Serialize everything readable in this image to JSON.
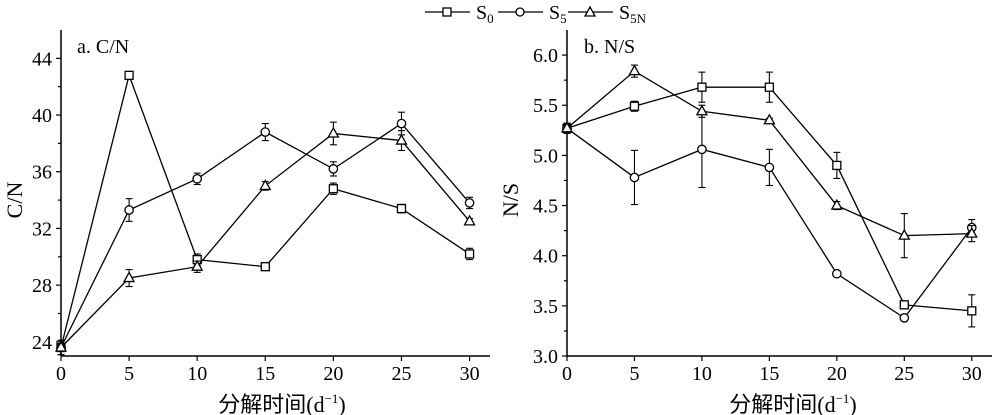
{
  "legend": [
    {
      "main": "S",
      "sub": "0"
    },
    {
      "main": "S",
      "sub": "5"
    },
    {
      "main": "S",
      "sub": "5N"
    }
  ],
  "chart_data": [
    {
      "type": "line",
      "title": "a. C/N",
      "xlabel": "分解时间(d",
      "xlabel_sup": "−1",
      "xlabel_end": ")",
      "ylabel": "C/N",
      "x": [
        0,
        5,
        10,
        15,
        20,
        25,
        30
      ],
      "xticks": [
        "0",
        "5",
        "10",
        "15",
        "20",
        "25",
        "30"
      ],
      "yticks": [
        "24",
        "28",
        "32",
        "36",
        "40",
        "44"
      ],
      "xlim": [
        0,
        31.5
      ],
      "ylim": [
        23,
        46
      ],
      "series": [
        {
          "name": "S0",
          "marker": "square",
          "values": [
            23.6,
            42.8,
            29.8,
            29.3,
            34.8,
            33.4,
            30.2
          ],
          "errors": [
            0.5,
            0.2,
            0.4,
            0.2,
            0.4,
            0.3,
            0.4
          ]
        },
        {
          "name": "S5",
          "marker": "circle",
          "values": [
            23.6,
            33.3,
            35.5,
            38.8,
            36.2,
            39.4,
            33.8
          ],
          "errors": [
            0.5,
            0.8,
            0.4,
            0.6,
            0.5,
            0.8,
            0.4
          ]
        },
        {
          "name": "S5N",
          "marker": "triangle",
          "values": [
            23.6,
            28.5,
            29.3,
            35.0,
            38.7,
            38.2,
            32.5
          ],
          "errors": [
            0.5,
            0.6,
            0.4,
            0.3,
            0.8,
            0.7,
            0.2
          ]
        }
      ]
    },
    {
      "type": "line",
      "title": "b. N/S",
      "xlabel": "分解时间(d",
      "xlabel_sup": "−1",
      "xlabel_end": ")",
      "ylabel": "N/S",
      "x": [
        0,
        5,
        10,
        15,
        20,
        25,
        30
      ],
      "xticks": [
        "0",
        "5",
        "10",
        "15",
        "20",
        "25",
        "30"
      ],
      "yticks": [
        "3.0",
        "3.5",
        "4.0",
        "4.5",
        "5.0",
        "5.5",
        "6.0"
      ],
      "xlim": [
        0,
        31.5
      ],
      "ylim": [
        3.0,
        6.25
      ],
      "series": [
        {
          "name": "S0",
          "marker": "square",
          "values": [
            5.27,
            5.49,
            5.68,
            5.68,
            4.9,
            3.51,
            3.45
          ],
          "errors": [
            0.05,
            0.05,
            0.15,
            0.15,
            0.13,
            0.03,
            0.16
          ]
        },
        {
          "name": "S5",
          "marker": "circle",
          "values": [
            5.27,
            4.78,
            5.06,
            4.88,
            3.82,
            3.38,
            4.28
          ],
          "errors": [
            0.05,
            0.27,
            0.38,
            0.18,
            0.02,
            0.02,
            0.08
          ]
        },
        {
          "name": "S5N",
          "marker": "triangle",
          "values": [
            5.27,
            5.84,
            5.44,
            5.35,
            4.5,
            4.2,
            4.22
          ],
          "errors": [
            0.05,
            0.06,
            0.06,
            0.02,
            0.04,
            0.22,
            0.08
          ]
        }
      ]
    }
  ]
}
